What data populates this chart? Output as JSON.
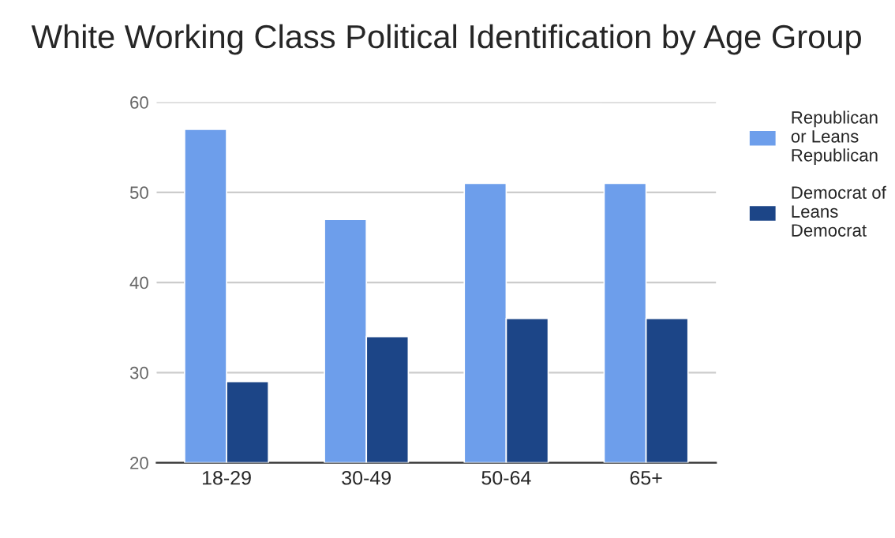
{
  "chart_data": {
    "type": "bar",
    "title": "White Working Class Political Identification by Age Group",
    "categories": [
      "18-29",
      "30-49",
      "50-64",
      "65+"
    ],
    "series": [
      {
        "name": "Republican\nor Leans\nRepublican",
        "color": "#6d9eeb",
        "values": [
          57,
          47,
          51,
          51
        ]
      },
      {
        "name": "Democrat of\nLeans\nDemocrat",
        "color": "#1c4587",
        "values": [
          29,
          34,
          36,
          36
        ]
      }
    ],
    "ylim": [
      20,
      60
    ],
    "yticks": [
      20,
      30,
      40,
      50,
      60
    ],
    "grid": "y",
    "legend": "right"
  }
}
